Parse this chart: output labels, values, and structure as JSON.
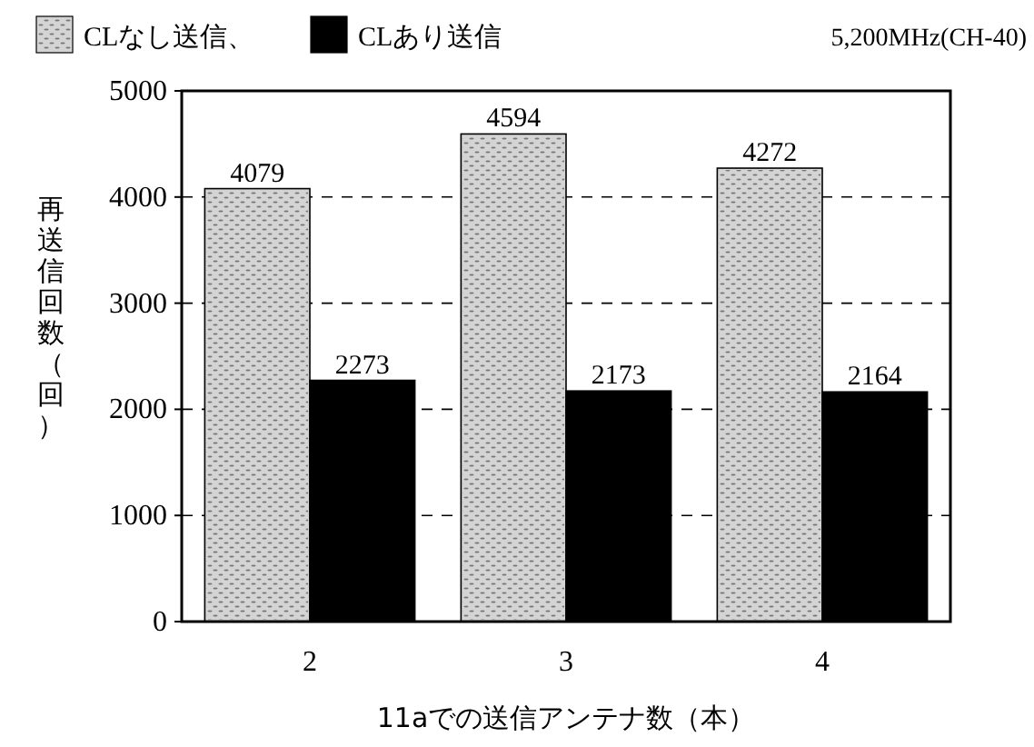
{
  "chart_data": {
    "type": "bar",
    "xlabel": "11aでの送信アンテナ数（本）",
    "ylabel": "再送信回数（回）",
    "categories": [
      "2",
      "3",
      "4"
    ],
    "series": [
      {
        "name": "CLなし送信、",
        "color": "#d4d4d4",
        "values": [
          4079,
          4594,
          4272
        ]
      },
      {
        "name": "CLあり送信",
        "color": "#000000",
        "values": [
          2273,
          2173,
          2164
        ]
      }
    ],
    "ylim": [
      0,
      5000
    ],
    "yticks": [
      0,
      1000,
      2000,
      3000,
      4000,
      5000
    ],
    "grid": "y",
    "legend": "top",
    "data_labels": true,
    "annotations": [
      "5,200MHz(CH-40)"
    ]
  }
}
